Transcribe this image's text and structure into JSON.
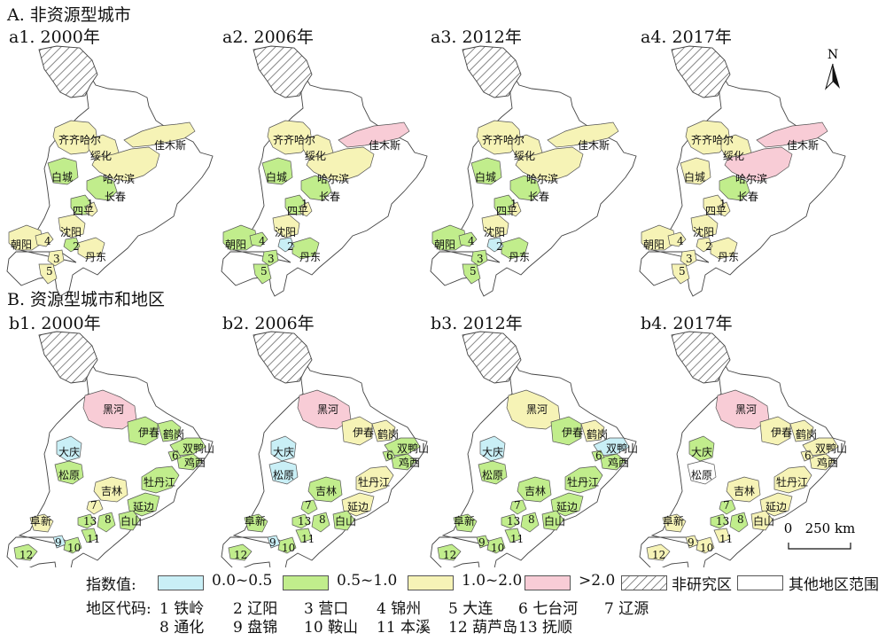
{
  "sectionA": "A. 非资源型城市",
  "sectionB": "B. 资源型城市和地区",
  "colors": {
    "cyan": "#c9eff6",
    "green": "#c1ed8c",
    "yellow": "#f6f3b6",
    "pink": "#f8ccd6",
    "white": "#ffffff"
  },
  "north": "N",
  "scalebar": "0   250 km",
  "panelsA": [
    {
      "title": "a1. 2000年",
      "fills": {
        "qqhe": "yellow",
        "suihua": "yellow",
        "jiamusi": "yellow",
        "harbin": "yellow",
        "baicheng": "green",
        "changchun": "green",
        "siping": "green",
        "shenyang": "yellow",
        "chaoyang": "yellow",
        "dandong": "yellow",
        "d1": "yellow",
        "d2": "green",
        "d3": "yellow",
        "d4": "yellow",
        "d5": "yellow"
      }
    },
    {
      "title": "a2. 2006年",
      "fills": {
        "qqhe": "yellow",
        "suihua": "yellow",
        "jiamusi": "pink",
        "harbin": "yellow",
        "baicheng": "green",
        "changchun": "green",
        "siping": "green",
        "shenyang": "yellow",
        "chaoyang": "green",
        "dandong": "green",
        "d1": "yellow",
        "d2": "cyan",
        "d3": "green",
        "d4": "green",
        "d5": "green"
      }
    },
    {
      "title": "a3. 2012年",
      "fills": {
        "qqhe": "yellow",
        "suihua": "yellow",
        "jiamusi": "yellow",
        "harbin": "yellow",
        "baicheng": "green",
        "changchun": "green",
        "siping": "green",
        "shenyang": "yellow",
        "chaoyang": "green",
        "dandong": "green",
        "d1": "yellow",
        "d2": "cyan",
        "d3": "green",
        "d4": "green",
        "d5": "green"
      }
    },
    {
      "title": "a4. 2017年",
      "fills": {
        "qqhe": "yellow",
        "suihua": "yellow",
        "jiamusi": "pink",
        "harbin": "pink",
        "baicheng": "yellow",
        "changchun": "green",
        "siping": "yellow",
        "shenyang": "yellow",
        "chaoyang": "yellow",
        "dandong": "yellow",
        "d1": "yellow",
        "d2": "yellow",
        "d3": "yellow",
        "d4": "yellow",
        "d5": "yellow"
      }
    }
  ],
  "panelsB": [
    {
      "title": "b1. 2000年",
      "fills": {
        "heihe": "pink",
        "yichun": "green",
        "hegang": "green",
        "daqing": "cyan",
        "shuangyashan": "green",
        "jixi": "green",
        "songyuan": "green",
        "mudanjiang": "green",
        "jilin": "yellow",
        "yanbian": "green",
        "baishan": "green",
        "fuxin": "yellow",
        "r6": "green",
        "r7": "yellow",
        "r8": "green",
        "r9": "cyan",
        "r10": "green",
        "r11": "green",
        "r12": "green",
        "r13": "green"
      }
    },
    {
      "title": "b2. 2006年",
      "fills": {
        "heihe": "pink",
        "yichun": "yellow",
        "hegang": "yellow",
        "daqing": "cyan",
        "shuangyashan": "green",
        "jixi": "green",
        "songyuan": "cyan",
        "mudanjiang": "yellow",
        "jilin": "green",
        "yanbian": "yellow",
        "baishan": "green",
        "fuxin": "green",
        "r6": "green",
        "r7": "green",
        "r8": "green",
        "r9": "cyan",
        "r10": "green",
        "r11": "green",
        "r12": "green",
        "r13": "green"
      }
    },
    {
      "title": "b3. 2012年",
      "fills": {
        "heihe": "yellow",
        "yichun": "green",
        "hegang": "yellow",
        "daqing": "cyan",
        "shuangyashan": "cyan",
        "jixi": "green",
        "songyuan": "green",
        "mudanjiang": "green",
        "jilin": "green",
        "yanbian": "green",
        "baishan": "green",
        "fuxin": "green",
        "r6": "green",
        "r7": "green",
        "r8": "green",
        "r9": "green",
        "r10": "green",
        "r11": "green",
        "r12": "green",
        "r13": "green"
      }
    },
    {
      "title": "b4. 2017年",
      "fills": {
        "heihe": "pink",
        "yichun": "yellow",
        "hegang": "yellow",
        "daqing": "green",
        "shuangyashan": "yellow",
        "jixi": "yellow",
        "songyuan": "white",
        "mudanjiang": "yellow",
        "jilin": "yellow",
        "yanbian": "yellow",
        "baishan": "yellow",
        "fuxin": "yellow",
        "r6": "yellow",
        "r7": "green",
        "r8": "green",
        "r9": "yellow",
        "r10": "yellow",
        "r11": "yellow",
        "r12": "yellow",
        "r13": "green"
      }
    }
  ],
  "labelsA": {
    "qqhe": "齐齐哈尔",
    "suihua": "绥化",
    "jiamusi": "佳木斯",
    "baicheng": "白城",
    "harbin": "哈尔滨",
    "changchun": "长春",
    "siping": "四平",
    "shenyang": "沈阳",
    "chaoyang": "朝阳",
    "dandong": "丹东",
    "n1": "1",
    "n2": "2",
    "n3": "3",
    "n4": "4",
    "n5": "5"
  },
  "labelsB": {
    "heihe": "黑河",
    "yichun": "伊春",
    "hegang": "鹤岗",
    "daqing": "大庆",
    "shuangyashan": "双鸭山",
    "jixi": "鸡西",
    "songyuan": "松原",
    "mudanjiang": "牡丹江",
    "jilin": "吉林",
    "yanbian": "延边",
    "baishan": "白山",
    "fuxin": "阜新",
    "n6": "6",
    "n7": "7",
    "n8": "8",
    "n9": "9",
    "n10": "10",
    "n11": "11",
    "n12": "12",
    "n13": "13"
  },
  "legend": {
    "index_label": "指数值:",
    "items": [
      {
        "label": "0.0~0.5",
        "color": "cyan"
      },
      {
        "label": "0.5~1.0",
        "color": "green"
      },
      {
        "label": "1.0~2.0",
        "color": "yellow"
      },
      {
        "label": ">2.0",
        "color": "pink"
      },
      {
        "label": "非研究区",
        "color": "hatch"
      },
      {
        "label": "其他地区范围",
        "color": "white"
      }
    ],
    "code_label": "地区代码:",
    "codes_row1": [
      "1 铁岭",
      "2 辽阳",
      "3 营口",
      "4 锦州",
      "5 大连",
      "6 七台河",
      "7 辽源"
    ],
    "codes_row2": [
      "8 通化",
      "9 盘锦",
      "10 鞍山",
      "11 本溪",
      "12 葫芦岛",
      "13 抚顺"
    ]
  }
}
